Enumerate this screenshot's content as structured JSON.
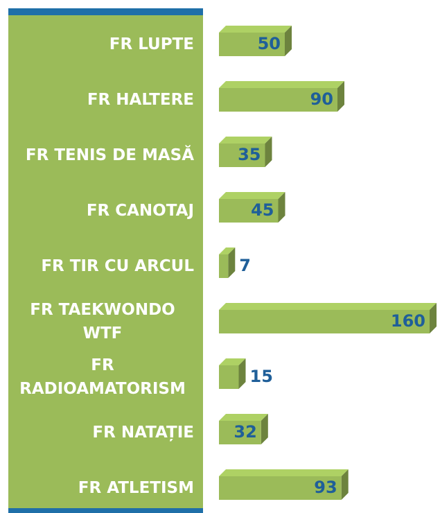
{
  "chart_data": {
    "type": "bar",
    "orientation": "horizontal",
    "categories": [
      "FR LUPTE",
      "FR HALTERE",
      "FR TENIS DE MASĂ",
      "FR CANOTAJ",
      "FR TIR CU ARCUL",
      "FR TAEKWONDO WTF",
      "FR RADIOAMATORISM",
      "FR NATAȚIE",
      "FR ATLETISM"
    ],
    "values": [
      50,
      90,
      35,
      45,
      7,
      160,
      15,
      32,
      93
    ],
    "color": "#9bbb59"
  }
}
